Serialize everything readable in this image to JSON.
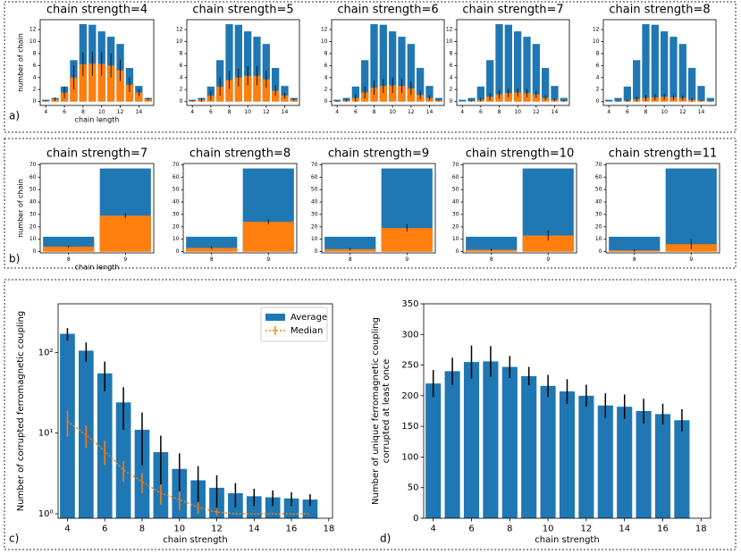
{
  "chart_data": [
    {
      "type": "bar",
      "title": "chain strength=4",
      "panel_label": "a)",
      "ylabel": "number of chain",
      "xlabel": "chain length",
      "x": [
        4,
        5,
        6,
        7,
        8,
        9,
        10,
        11,
        12,
        13,
        14,
        15
      ],
      "xlim": [
        3.4,
        15.6
      ],
      "ylim": [
        -0.65,
        13.65
      ],
      "xticks": [
        4,
        6,
        8,
        10,
        12,
        14
      ],
      "yticks": [
        0,
        2,
        4,
        6,
        8,
        10,
        12
      ],
      "series": [
        {
          "color": "#1f77b4",
          "values": [
            0.3,
            0.6,
            2.5,
            6.9,
            12.9,
            12.8,
            11.7,
            10.8,
            9.6,
            5.6,
            2.6,
            0.6
          ]
        },
        {
          "color": "#ff7f0e",
          "values": [
            0.1,
            0.4,
            1.5,
            4,
            6.2,
            6.3,
            6.3,
            6,
            5.2,
            2.8,
            1.5,
            0.4
          ],
          "errors": [
            0.1,
            0.3,
            1,
            2,
            2,
            2,
            2,
            2,
            1.8,
            1.2,
            0.6,
            0.2
          ]
        }
      ]
    },
    {
      "type": "bar",
      "title": "chain strength=5",
      "x": [
        4,
        5,
        6,
        7,
        8,
        9,
        10,
        11,
        12,
        13,
        14,
        15
      ],
      "xlim": [
        3.4,
        15.6
      ],
      "ylim": [
        -0.65,
        13.65
      ],
      "xticks": [
        4,
        6,
        8,
        10,
        12,
        14
      ],
      "yticks": [
        0,
        2,
        4,
        6,
        8,
        10,
        12
      ],
      "series": [
        {
          "color": "#1f77b4",
          "values": [
            0.3,
            0.6,
            2.5,
            6.9,
            12.9,
            12.8,
            11.7,
            10.8,
            9.6,
            5.6,
            2.6,
            0.6
          ]
        },
        {
          "color": "#ff7f0e",
          "values": [
            0.1,
            0.3,
            1,
            2.5,
            3.6,
            4,
            4.3,
            4.3,
            3.7,
            1.8,
            1,
            0.3
          ],
          "errors": [
            0.1,
            0.3,
            0.8,
            1.5,
            1.5,
            1.5,
            1.6,
            1.6,
            1.4,
            0.9,
            0.5,
            0.2
          ]
        }
      ]
    },
    {
      "type": "bar",
      "title": "chain strength=6",
      "x": [
        4,
        5,
        6,
        7,
        8,
        9,
        10,
        11,
        12,
        13,
        14,
        15
      ],
      "xlim": [
        3.4,
        15.6
      ],
      "ylim": [
        -0.65,
        13.65
      ],
      "xticks": [
        4,
        6,
        8,
        10,
        12,
        14
      ],
      "yticks": [
        0,
        2,
        4,
        6,
        8,
        10,
        12
      ],
      "series": [
        {
          "color": "#1f77b4",
          "values": [
            0.3,
            0.6,
            2.5,
            6.9,
            12.9,
            12.8,
            11.7,
            10.8,
            9.6,
            5.6,
            2.6,
            0.6
          ]
        },
        {
          "color": "#ff7f0e",
          "values": [
            0.05,
            0.2,
            0.6,
            1.5,
            2.3,
            2.6,
            2.7,
            2.6,
            2.2,
            1.1,
            0.6,
            0.2
          ],
          "errors": [
            0.1,
            0.2,
            0.6,
            1,
            1.2,
            1.2,
            1.3,
            1.2,
            1.1,
            0.7,
            0.4,
            0.1
          ]
        }
      ]
    },
    {
      "type": "bar",
      "title": "chain strength=7",
      "x": [
        4,
        5,
        6,
        7,
        8,
        9,
        10,
        11,
        12,
        13,
        14,
        15
      ],
      "xlim": [
        3.4,
        15.6
      ],
      "ylim": [
        -0.65,
        13.65
      ],
      "xticks": [
        4,
        6,
        8,
        10,
        12,
        14
      ],
      "yticks": [
        0,
        2,
        4,
        6,
        8,
        10,
        12
      ],
      "series": [
        {
          "color": "#1f77b4",
          "values": [
            0.3,
            0.6,
            2.5,
            6.9,
            12.9,
            12.8,
            11.7,
            10.8,
            9.6,
            5.6,
            2.6,
            0.6
          ]
        },
        {
          "color": "#ff7f0e",
          "values": [
            0,
            0.1,
            0.3,
            0.8,
            1.2,
            1.4,
            1.5,
            1.4,
            1.2,
            0.6,
            0.3,
            0.1
          ],
          "errors": [
            0,
            0.1,
            0.3,
            0.6,
            0.7,
            0.7,
            0.7,
            0.7,
            0.6,
            0.4,
            0.2,
            0.1
          ]
        }
      ]
    },
    {
      "type": "bar",
      "title": "chain strength=8",
      "x": [
        4,
        5,
        6,
        7,
        8,
        9,
        10,
        11,
        12,
        13,
        14,
        15
      ],
      "xlim": [
        3.4,
        15.6
      ],
      "ylim": [
        -0.65,
        13.65
      ],
      "xticks": [
        4,
        6,
        8,
        10,
        12,
        14
      ],
      "yticks": [
        0,
        2,
        4,
        6,
        8,
        10,
        12
      ],
      "series": [
        {
          "color": "#1f77b4",
          "values": [
            0.3,
            0.6,
            2.5,
            6.9,
            12.9,
            12.8,
            11.7,
            10.8,
            9.6,
            5.6,
            2.6,
            0.6
          ]
        },
        {
          "color": "#ff7f0e",
          "values": [
            0,
            0.05,
            0.15,
            0.4,
            0.6,
            0.7,
            0.8,
            0.7,
            0.6,
            0.3,
            0.15,
            0.05
          ],
          "errors": [
            0,
            0.05,
            0.2,
            0.4,
            0.5,
            0.5,
            0.5,
            0.5,
            0.4,
            0.3,
            0.1,
            0.05
          ]
        }
      ]
    },
    {
      "type": "bar",
      "title": "chain strength=7",
      "panel_label": "b)",
      "ylabel": "number of chain",
      "xlabel": "chain length",
      "categories": [
        "8",
        "9"
      ],
      "ylim": [
        -1,
        71
      ],
      "yticks": [
        0,
        10,
        20,
        30,
        40,
        50,
        60,
        70
      ],
      "series": [
        {
          "color": "#1f77b4",
          "values": [
            12,
            67
          ]
        },
        {
          "color": "#ff7f0e",
          "values": [
            4,
            29
          ],
          "errors": [
            1,
            2
          ]
        }
      ]
    },
    {
      "type": "bar",
      "title": "chain strength=8",
      "categories": [
        "8",
        "9"
      ],
      "ylim": [
        -1,
        71
      ],
      "yticks": [
        0,
        10,
        20,
        30,
        40,
        50,
        60,
        70
      ],
      "series": [
        {
          "color": "#1f77b4",
          "values": [
            12,
            67
          ]
        },
        {
          "color": "#ff7f0e",
          "values": [
            3,
            24
          ],
          "errors": [
            1,
            2
          ]
        }
      ]
    },
    {
      "type": "bar",
      "title": "chain strength=9",
      "categories": [
        "8",
        "9"
      ],
      "ylim": [
        -1,
        71
      ],
      "yticks": [
        0,
        10,
        20,
        30,
        40,
        50,
        60,
        70
      ],
      "series": [
        {
          "color": "#1f77b4",
          "values": [
            12,
            67
          ]
        },
        {
          "color": "#ff7f0e",
          "values": [
            2,
            19
          ],
          "errors": [
            1,
            3
          ]
        }
      ]
    },
    {
      "type": "bar",
      "title": "chain strength=10",
      "categories": [
        "8",
        "9"
      ],
      "ylim": [
        -1,
        71
      ],
      "yticks": [
        0,
        10,
        20,
        30,
        40,
        50,
        60,
        70
      ],
      "series": [
        {
          "color": "#1f77b4",
          "values": [
            12,
            67
          ]
        },
        {
          "color": "#ff7f0e",
          "values": [
            1.5,
            13
          ],
          "errors": [
            1,
            4
          ]
        }
      ]
    },
    {
      "type": "bar",
      "title": "chain strength=11",
      "categories": [
        "8",
        "9"
      ],
      "ylim": [
        -1,
        71
      ],
      "yticks": [
        0,
        10,
        20,
        30,
        40,
        50,
        60,
        70
      ],
      "series": [
        {
          "color": "#1f77b4",
          "values": [
            12,
            67
          ]
        },
        {
          "color": "#ff7f0e",
          "values": [
            1,
            6
          ],
          "errors": [
            1,
            4
          ]
        }
      ]
    },
    {
      "type": "bar",
      "panel_label": "c)",
      "ylabel": "Number of corrupted ferromagnetic coupling",
      "xlabel": "chain strength",
      "log_y": true,
      "legend": "upper right",
      "x": [
        4,
        5,
        6,
        7,
        8,
        9,
        10,
        11,
        12,
        13,
        14,
        15,
        16,
        17
      ],
      "xlim": [
        3.5,
        18.2
      ],
      "ylim": [
        0.88,
        400
      ],
      "xticks": [
        4,
        6,
        8,
        10,
        12,
        14,
        16,
        18
      ],
      "yticks": [
        {
          "value": 1,
          "label": "10⁰"
        },
        {
          "value": 10,
          "label": "10¹"
        },
        {
          "value": 100,
          "label": "10²"
        }
      ],
      "series": [
        {
          "name": "Average",
          "type": "bar",
          "color": "#1f77b4",
          "values": [
            170,
            105,
            55,
            24,
            11,
            5.8,
            3.6,
            2.6,
            2.1,
            1.8,
            1.65,
            1.6,
            1.55,
            1.5
          ],
          "errors": [
            30,
            28,
            22,
            13,
            7,
            3.5,
            2,
            1.3,
            0.9,
            0.6,
            0.4,
            0.35,
            0.3,
            0.25
          ]
        },
        {
          "name": "Median",
          "type": "line",
          "style": "dotted",
          "color": "#ff7f0e",
          "values": [
            14,
            9.5,
            6,
            3.5,
            2.5,
            1.8,
            1.5,
            1.2,
            1.05,
            1,
            1,
            1,
            1,
            1
          ],
          "errors": [
            5,
            3,
            2,
            1,
            0.7,
            0.5,
            0.4,
            0.2,
            0.1,
            0,
            0,
            0,
            0,
            0
          ]
        }
      ]
    },
    {
      "type": "bar",
      "panel_label": "d)",
      "ylabel": [
        "Number of unique ferromagnetic coupling",
        "corrupted at least once"
      ],
      "xlabel": "chain strength",
      "x": [
        4,
        5,
        6,
        7,
        8,
        9,
        10,
        11,
        12,
        13,
        14,
        15,
        16,
        17
      ],
      "xlim": [
        3.5,
        18.5
      ],
      "ylim": [
        0,
        350
      ],
      "xticks": [
        4,
        6,
        8,
        10,
        12,
        14,
        16,
        18
      ],
      "yticks": [
        0,
        50,
        100,
        150,
        200,
        250,
        300,
        350
      ],
      "series": [
        {
          "color": "#1f77b4",
          "values": [
            220,
            240,
            255,
            256,
            247,
            232,
            216,
            207,
            200,
            184,
            182,
            175,
            170,
            160
          ],
          "errors": [
            22,
            22,
            27,
            25,
            18,
            15,
            18,
            20,
            18,
            20,
            20,
            20,
            17,
            18
          ]
        }
      ]
    }
  ]
}
